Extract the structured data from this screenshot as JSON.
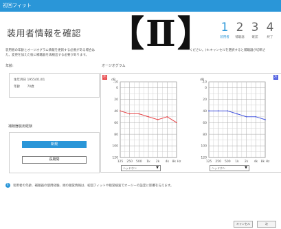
{
  "window": {
    "title": "初回フィット"
  },
  "header": {
    "title": "装用者情報を確認",
    "overlay_mark": "【Ⅱ】",
    "steps": [
      {
        "num": "1",
        "label": "装用者",
        "active": true
      },
      {
        "num": "2",
        "label": "補聴器",
        "active": false
      },
      {
        "num": "3",
        "label": "確認",
        "active": false
      },
      {
        "num": "4",
        "label": "終了",
        "active": false
      }
    ]
  },
  "description": {
    "line1": "装用者の年齢とオージオグラム情報を更新する必要がある場合は",
    "line2": "た。変更を加えた後に補聴器を再検出する必要があります。",
    "right": "ください。(※:キャンセルを選択すると補聴器が切断さ"
  },
  "patient": {
    "section_label": "年齢:",
    "birth_label": "生年月日",
    "birth_value": "1955/01/01",
    "age_label": "年齢",
    "age_value": "70歳"
  },
  "usage": {
    "section_label": "補聴器装用経験",
    "new_label": "新規",
    "long_label": "長期間"
  },
  "audiogram": {
    "section_label": "オージオグラム",
    "right_badge": "右",
    "left_badge": "左",
    "db_label": "dB",
    "freq_labels": [
      "125",
      "250",
      "500",
      "1k",
      "2k",
      "4k",
      "8k Hz"
    ],
    "right_select": "ヘッドホン",
    "left_select": "ヘッドホン",
    "right_color": "#e8474a",
    "left_color": "#4a5ae0"
  },
  "notice": {
    "icon": "i",
    "text": "装用者の年齢、補聴器の使用経験、頭の聴覚情報は、初回フィットや聴覚検査でオージーの設定に影響を与えます。"
  },
  "footer": {
    "cancel_label": "キャンセル",
    "next_label": "次"
  },
  "chart_data": [
    {
      "type": "line",
      "title": "",
      "ear": "右",
      "x": [
        "125",
        "250",
        "500",
        "1k",
        "2k",
        "4k",
        "8k"
      ],
      "series": [
        {
          "values": [
            40,
            45,
            45,
            50,
            55,
            50,
            60
          ],
          "color": "#e8474a"
        }
      ],
      "ylim": [
        -10,
        120
      ],
      "yticks": [
        -10,
        0,
        20,
        40,
        60,
        80,
        100,
        120
      ],
      "ylabel": "dB",
      "xlabel": "Hz",
      "grid": true,
      "invert_y": true
    },
    {
      "type": "line",
      "title": "",
      "ear": "左",
      "x": [
        "125",
        "250",
        "500",
        "1k",
        "2k",
        "4k",
        "8k"
      ],
      "series": [
        {
          "values": [
            40,
            40,
            40,
            45,
            50,
            50,
            55
          ],
          "color": "#4a5ae0"
        }
      ],
      "ylim": [
        -10,
        120
      ],
      "yticks": [
        -10,
        0,
        20,
        40,
        60,
        80,
        100,
        120
      ],
      "ylabel": "dB",
      "xlabel": "Hz",
      "grid": true,
      "invert_y": true
    }
  ]
}
